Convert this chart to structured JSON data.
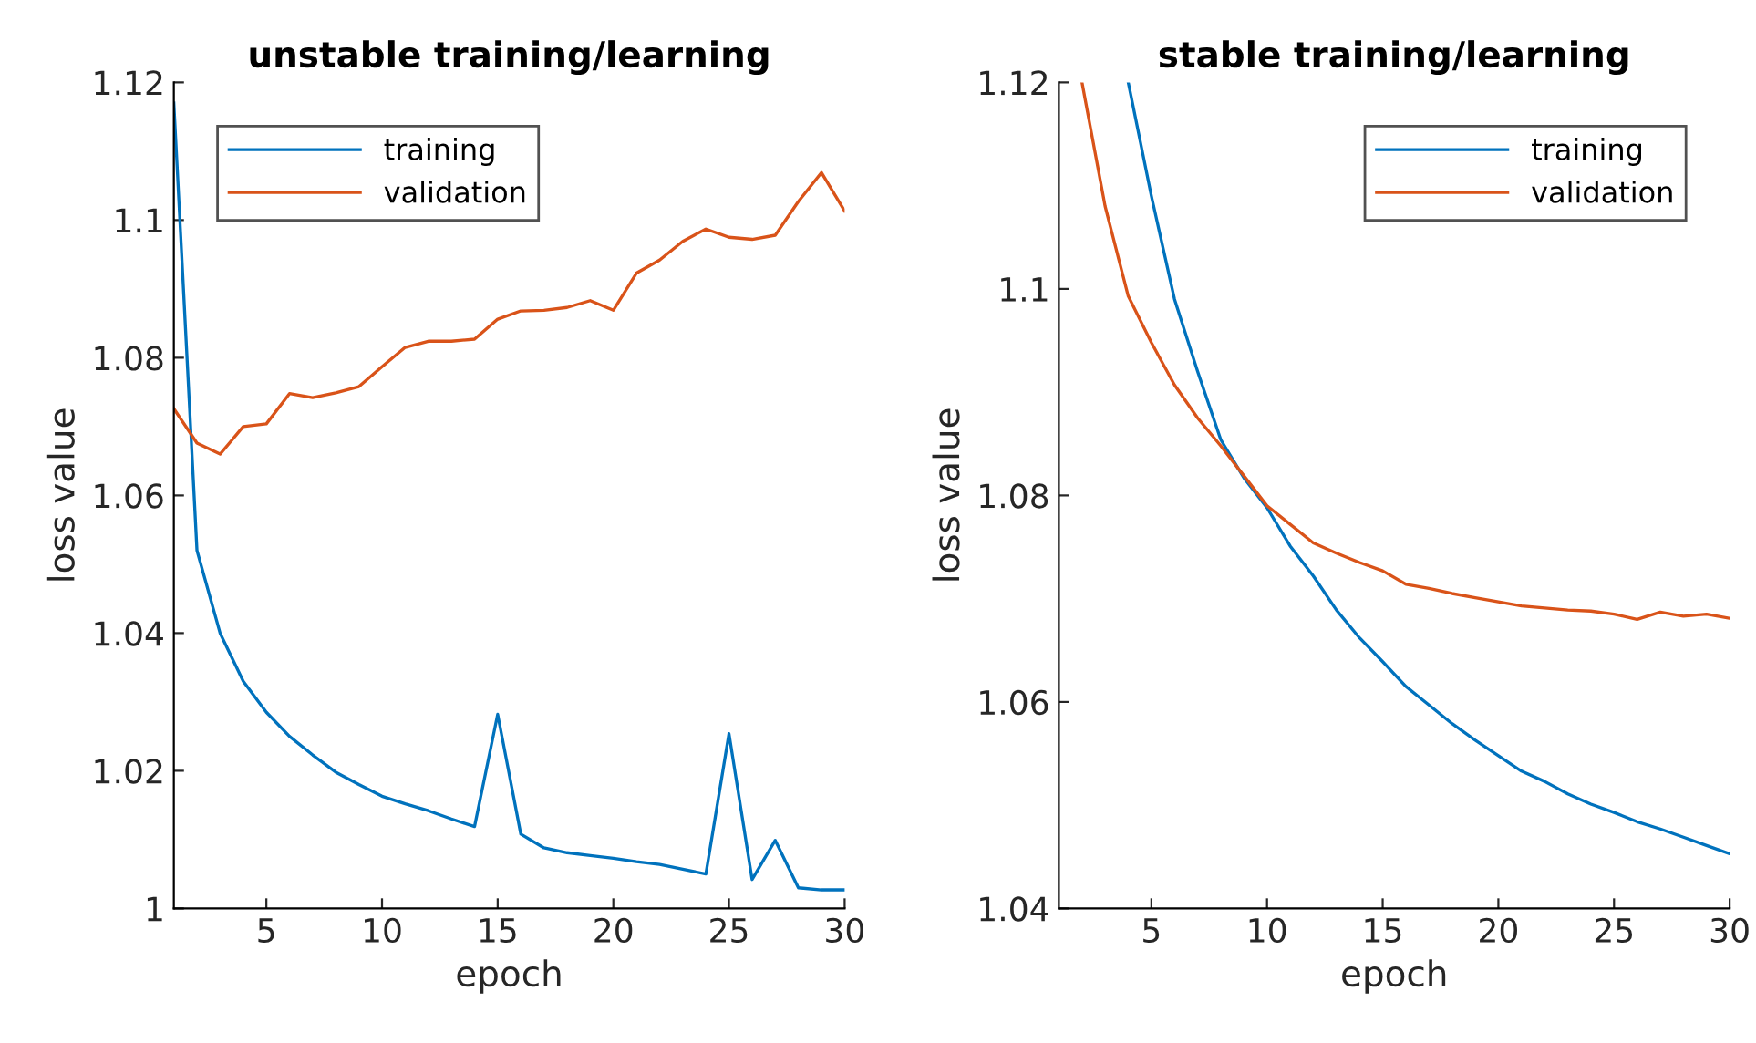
{
  "chart_data": [
    {
      "type": "line",
      "title": "unstable training/learning",
      "xlabel": "epoch",
      "ylabel": "loss value",
      "x": [
        1,
        2,
        3,
        4,
        5,
        6,
        7,
        8,
        9,
        10,
        11,
        12,
        13,
        14,
        15,
        16,
        17,
        18,
        19,
        20,
        21,
        22,
        23,
        24,
        25,
        26,
        27,
        28,
        29,
        30
      ],
      "series": [
        {
          "name": "training",
          "color": "#0072bd",
          "values": [
            1.117,
            1.052,
            1.04,
            1.033,
            1.0285,
            1.025,
            1.0223,
            1.0198,
            1.018,
            1.0163,
            1.0152,
            1.0142,
            1.013,
            1.0119,
            1.0282,
            1.0108,
            1.0088,
            1.0081,
            1.0077,
            1.0073,
            1.0068,
            1.0064,
            1.0057,
            1.005,
            1.0254,
            1.0042,
            1.0099,
            1.003,
            1.0027,
            1.0027
          ]
        },
        {
          "name": "validation",
          "color": "#d95319",
          "values": [
            1.0726,
            1.0676,
            1.066,
            1.07,
            1.0704,
            1.0748,
            1.0742,
            1.0749,
            1.0758,
            1.0787,
            1.0815,
            1.0824,
            1.0824,
            1.0827,
            1.0856,
            1.0868,
            1.0869,
            1.0873,
            1.0883,
            1.0869,
            1.0923,
            1.0942,
            1.0969,
            1.0987,
            1.0975,
            1.0972,
            1.0978,
            1.1027,
            1.1069,
            1.1013
          ]
        }
      ],
      "xlim": [
        1,
        30
      ],
      "xticks": [
        5,
        10,
        15,
        20,
        25,
        30
      ],
      "ylim": [
        1,
        1.12
      ],
      "yticks": [
        1,
        1.02,
        1.04,
        1.06,
        1.08,
        1.1,
        1.12
      ],
      "legend": "top left",
      "grid": false
    },
    {
      "type": "line",
      "title": "stable training/learning",
      "xlabel": "epoch",
      "ylabel": "loss value",
      "series": [
        {
          "name": "training",
          "color": "#0072bd",
          "x": [
            4,
            5,
            6,
            7,
            8,
            9,
            10,
            11,
            12,
            13,
            14,
            15,
            16,
            17,
            18,
            19,
            20,
            21,
            22,
            23,
            24,
            25,
            26,
            27,
            28,
            29,
            30
          ],
          "values": [
            1.12,
            1.109,
            1.099,
            1.092,
            1.0854,
            1.0817,
            1.0788,
            1.0751,
            1.0722,
            1.0689,
            1.0662,
            1.0639,
            1.0615,
            1.0597,
            1.0579,
            1.0563,
            1.0548,
            1.0533,
            1.0523,
            1.0511,
            1.0501,
            1.0493,
            1.0484,
            1.0477,
            1.0469,
            1.0461,
            1.0453
          ]
        },
        {
          "name": "validation",
          "color": "#d95319",
          "x": [
            2,
            3,
            4,
            5,
            6,
            7,
            8,
            9,
            10,
            11,
            12,
            13,
            14,
            15,
            16,
            17,
            18,
            19,
            20,
            21,
            22,
            23,
            24,
            25,
            26,
            27,
            28,
            29,
            30
          ],
          "values": [
            1.12,
            1.108,
            1.0993,
            1.0948,
            1.0907,
            1.0875,
            1.0848,
            1.0819,
            1.079,
            1.0772,
            1.0754,
            1.0744,
            1.0735,
            1.0727,
            1.0714,
            1.071,
            1.0705,
            1.0701,
            1.0697,
            1.0693,
            1.0691,
            1.0689,
            1.0688,
            1.0685,
            1.068,
            1.0687,
            1.0683,
            1.0685,
            1.0681
          ]
        }
      ],
      "xlim": [
        1,
        30
      ],
      "xticks": [
        5,
        10,
        15,
        20,
        25,
        30
      ],
      "ylim": [
        1.04,
        1.12
      ],
      "yticks": [
        1.04,
        1.06,
        1.08,
        1.1,
        1.12
      ],
      "legend": "top right",
      "grid": false
    }
  ]
}
